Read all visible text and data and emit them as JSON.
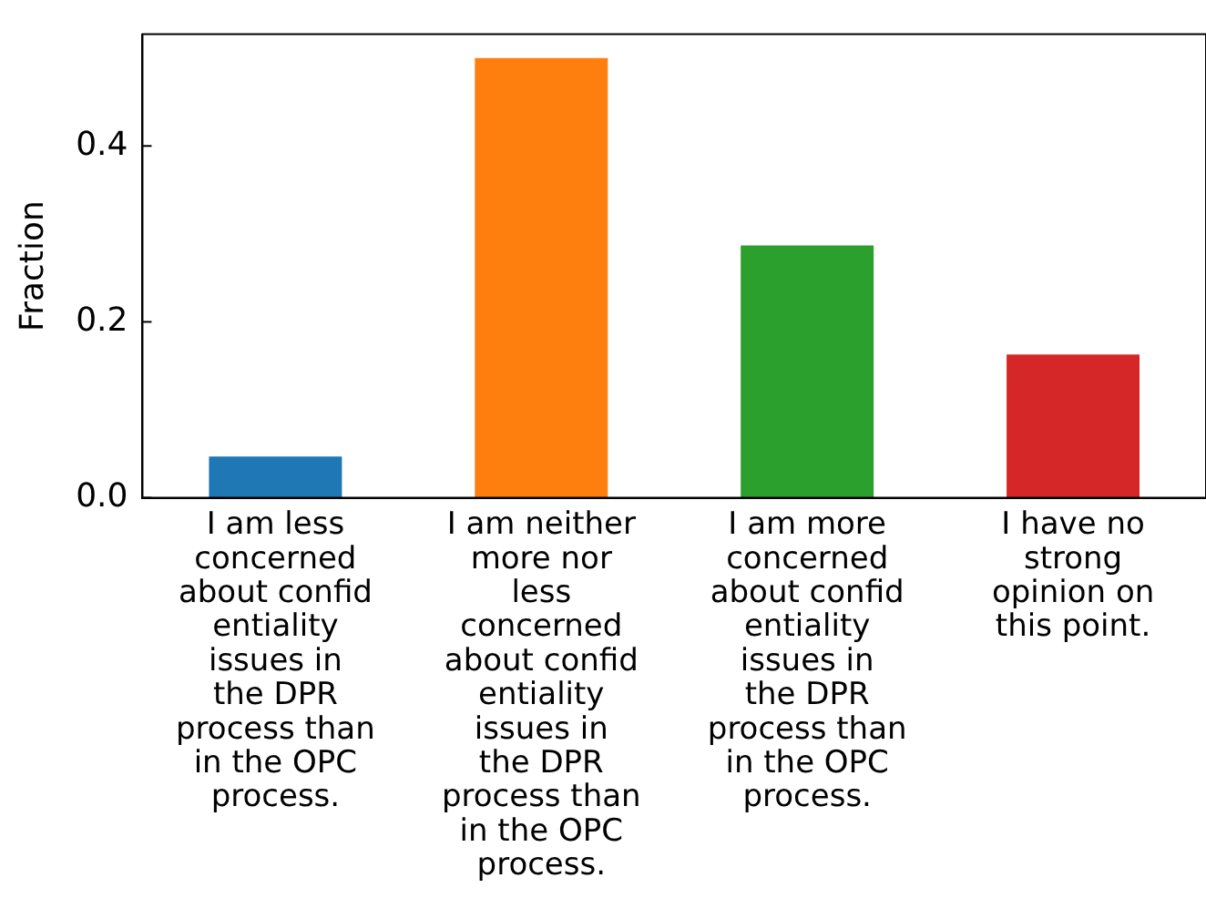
{
  "chart_data": {
    "type": "bar",
    "ylabel": "Fraction",
    "categories": [
      "I am less concerned about confid entiality issues in the DPR process than in the OPC process.",
      "I am neither more nor less concerned about confid entiality issues in the DPR process than in the OPC process.",
      "I am more concerned about confid entiality issues in the DPR process than in the OPC process.",
      "I have no strong opinion on this point."
    ],
    "values": [
      0.047,
      0.5,
      0.287,
      0.163
    ],
    "colors": [
      "#1f77b4",
      "#ff7f0e",
      "#2ca02c",
      "#d62728"
    ],
    "ylim": [
      0,
      0.527
    ],
    "yticks": [
      {
        "value": 0,
        "label": "0.0"
      },
      {
        "value": 0.2,
        "label": "0.2"
      },
      {
        "value": 0.4,
        "label": "0.4"
      }
    ],
    "grid": false,
    "legend": false
  }
}
